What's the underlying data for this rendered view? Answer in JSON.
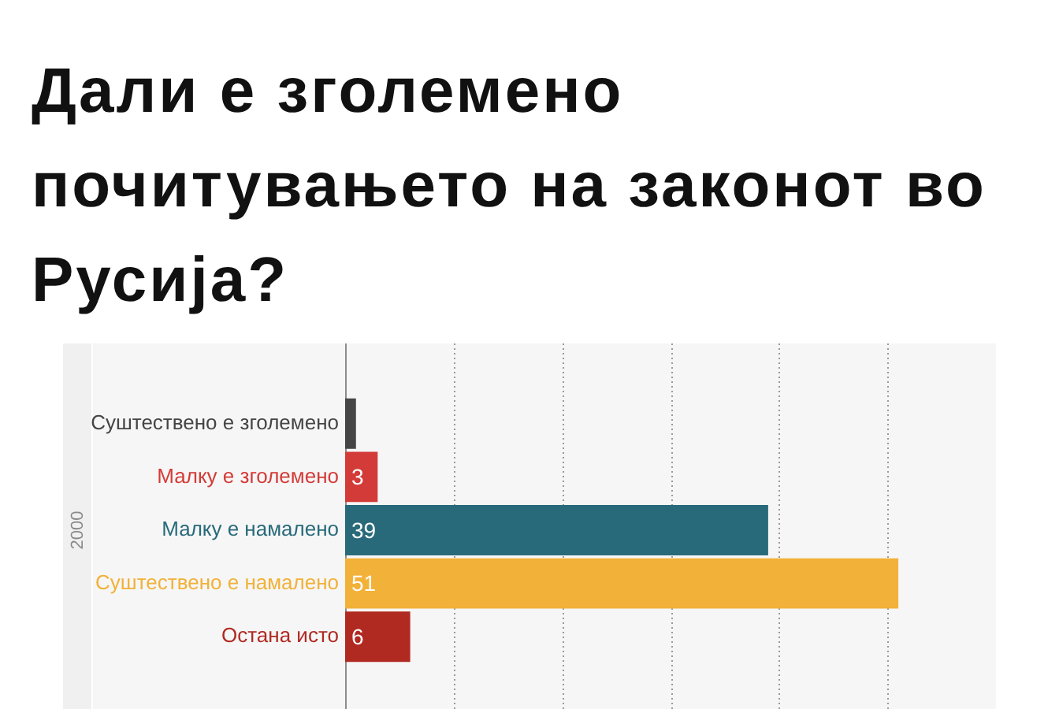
{
  "chart_data": {
    "type": "bar",
    "orientation": "horizontal",
    "title": "Дали е зголемено почитувањето на законот во Русија?",
    "ylabel": "2000",
    "categories": [
      "Суштествено е зголемено",
      "Малку е зголемено",
      "Малку е намалено",
      "Суштествено е намалено",
      "Остана исто"
    ],
    "values": [
      1,
      3,
      39,
      51,
      6
    ],
    "colors": [
      "#454545",
      "#d33b38",
      "#286a7a",
      "#f2b138",
      "#b02a22"
    ],
    "value_labels": [
      null,
      "3",
      "39",
      "51",
      "6"
    ],
    "xlim": [
      0,
      60
    ],
    "xticks": [
      {
        "value": 0,
        "label": null
      },
      {
        "value": 10,
        "label": null
      },
      {
        "value": 20,
        "label": null
      },
      {
        "value": 30,
        "label": null
      },
      {
        "value": 40,
        "label": null
      },
      {
        "value": 50,
        "label": null
      }
    ],
    "tick_labels": "y",
    "grid": "x"
  }
}
